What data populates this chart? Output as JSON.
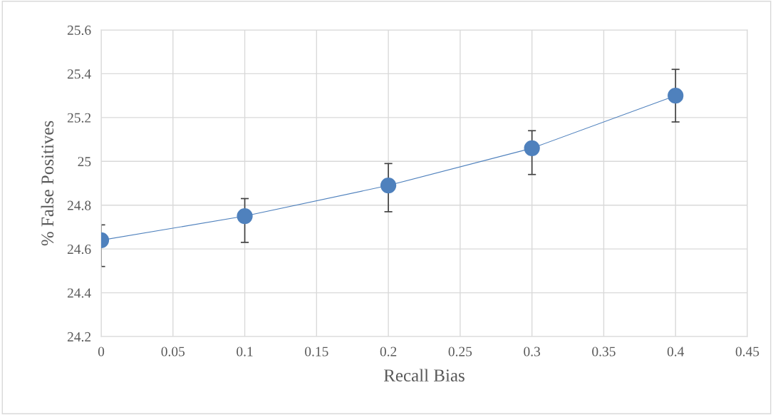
{
  "chart_data": {
    "type": "line",
    "xlabel": "Recall Bias",
    "ylabel": "% False Positives",
    "x": [
      0,
      0.1,
      0.2,
      0.3,
      0.4
    ],
    "series": [
      {
        "color": "#4f81bd",
        "values": [
          24.64,
          24.75,
          24.89,
          25.06,
          25.3
        ],
        "errors": [
          [
            24.52,
            24.71
          ],
          [
            24.63,
            24.83
          ],
          [
            24.77,
            24.99
          ],
          [
            24.94,
            25.14
          ],
          [
            25.18,
            25.42
          ]
        ]
      }
    ],
    "xlim": [
      0,
      0.45
    ],
    "xticks": [
      {
        "value": 0,
        "label": "0"
      },
      0.05,
      0.1,
      0.15,
      0.2,
      0.25,
      0.3,
      0.35,
      0.4,
      0.45
    ],
    "ylim": [
      24.2,
      25.6
    ],
    "yticks": [
      24.2,
      24.4,
      24.6,
      24.8,
      {
        "value": 25,
        "label": "25"
      },
      25.2,
      25.4,
      25.6
    ],
    "grid": true,
    "marker": "circle",
    "line_style": "solid",
    "legend": false
  }
}
